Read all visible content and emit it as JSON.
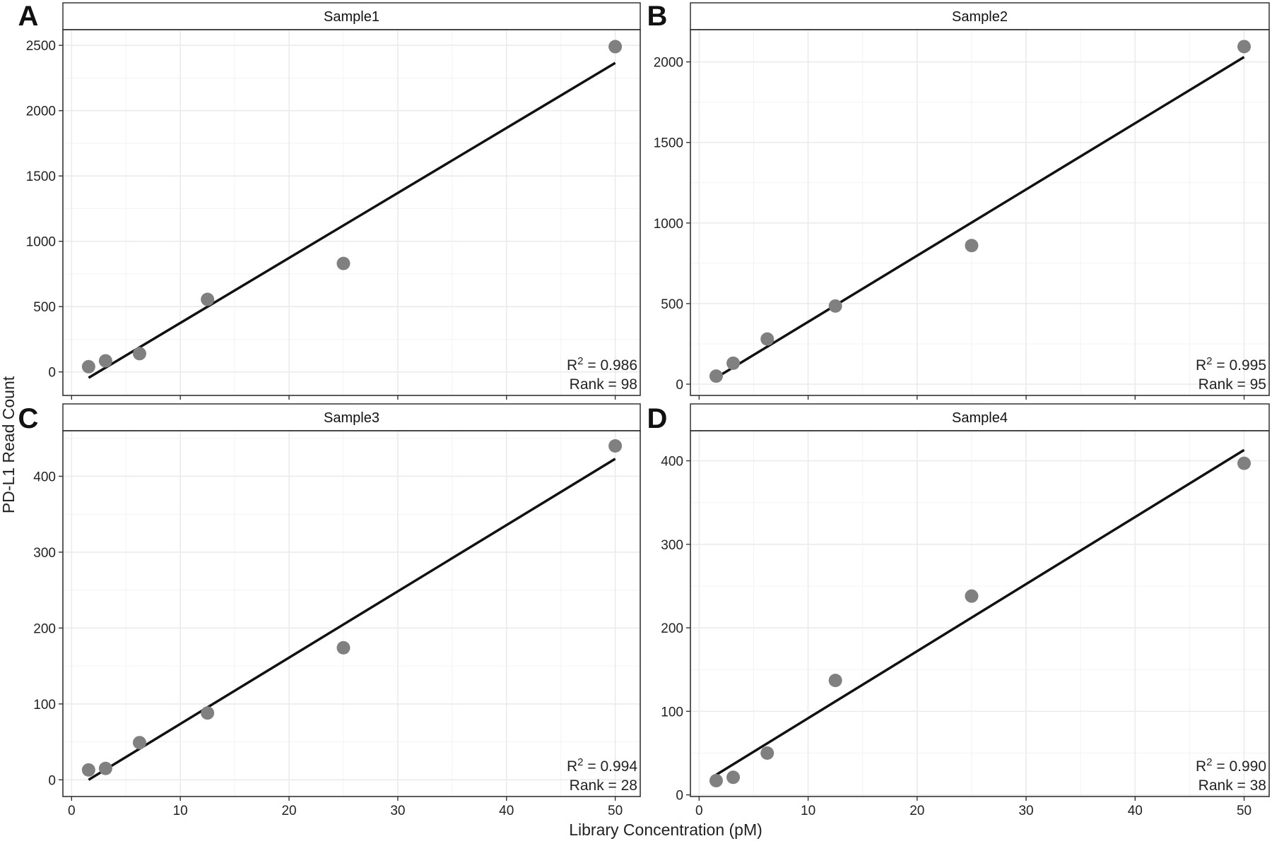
{
  "figure": {
    "xlabel": "Library Concentration (pM)",
    "ylabel": "PD-L1 Read Count"
  },
  "colors": {
    "point": "#808080",
    "fit_line": "#111111",
    "grid": "#ebebeb",
    "strip_fill": "#ffffff",
    "border": "#333333"
  },
  "chart_data": [
    {
      "type": "scatter",
      "panel": "A",
      "title": "Sample1",
      "x": [
        1.5625,
        3.125,
        6.25,
        12.5,
        25,
        50
      ],
      "y": [
        40,
        85,
        140,
        555,
        830,
        2490
      ],
      "fit": {
        "x": [
          1.5625,
          50
        ],
        "y": [
          -45,
          2365
        ]
      },
      "xlim": [
        -0.8,
        52.3
      ],
      "ylim": [
        -180,
        2620
      ],
      "xticks": [
        0,
        10,
        20,
        30,
        40,
        50
      ],
      "yticks": [
        0,
        500,
        1000,
        1500,
        2000,
        2500
      ],
      "r2_prefix": "R",
      "r2_sup": "2",
      "r2_value": " = 0.986",
      "rank_label": "Rank = 98",
      "grid": true
    },
    {
      "type": "scatter",
      "panel": "B",
      "title": "Sample2",
      "x": [
        1.5625,
        3.125,
        6.25,
        12.5,
        25,
        50
      ],
      "y": [
        50,
        130,
        280,
        485,
        860,
        2095
      ],
      "fit": {
        "x": [
          1.5625,
          50
        ],
        "y": [
          40,
          2030
        ]
      },
      "xlim": [
        -0.8,
        52.3
      ],
      "ylim": [
        -70,
        2200
      ],
      "xticks": [
        0,
        10,
        20,
        30,
        40,
        50
      ],
      "yticks": [
        0,
        500,
        1000,
        1500,
        2000
      ],
      "r2_prefix": "R",
      "r2_sup": "2",
      "r2_value": " = 0.995",
      "rank_label": "Rank  = 95",
      "grid": true
    },
    {
      "type": "scatter",
      "panel": "C",
      "title": "Sample3",
      "x": [
        1.5625,
        3.125,
        6.25,
        12.5,
        25,
        50
      ],
      "y": [
        13,
        15,
        49,
        88,
        174,
        440
      ],
      "fit": {
        "x": [
          1.5625,
          50
        ],
        "y": [
          0,
          423
        ]
      },
      "xlim": [
        -0.8,
        52.3
      ],
      "ylim": [
        -22,
        460
      ],
      "xticks": [
        0,
        10,
        20,
        30,
        40,
        50
      ],
      "yticks": [
        0,
        100,
        200,
        300,
        400
      ],
      "r2_prefix": "R",
      "r2_sup": "2",
      "r2_value": " = 0.994",
      "rank_label": "Rank = 28",
      "grid": true
    },
    {
      "type": "scatter",
      "panel": "D",
      "title": "Sample4",
      "x": [
        1.5625,
        3.125,
        6.25,
        12.5,
        25,
        50
      ],
      "y": [
        17,
        21,
        50,
        137,
        238,
        397
      ],
      "fit": {
        "x": [
          1.5625,
          50
        ],
        "y": [
          24,
          413
        ]
      },
      "xlim": [
        -0.8,
        52.3
      ],
      "ylim": [
        -2,
        436
      ],
      "xticks": [
        0,
        10,
        20,
        30,
        40,
        50
      ],
      "yticks": [
        0,
        100,
        200,
        300,
        400
      ],
      "r2_prefix": "R",
      "r2_sup": "2",
      "r2_value": " = 0.990",
      "rank_label": "Rank = 38",
      "grid": true
    }
  ]
}
